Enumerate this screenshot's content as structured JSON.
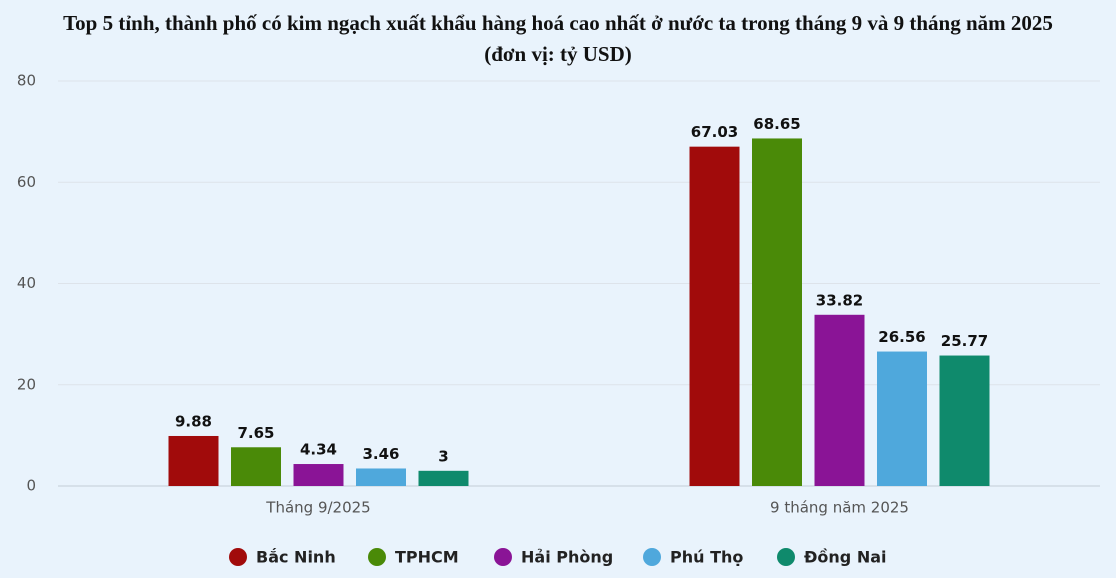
{
  "chart_data": {
    "type": "bar",
    "title": "Top 5 tỉnh, thành phố có kim ngạch xuất khẩu hàng hoá cao nhất ở nước ta trong tháng 9 và 9 tháng năm 2025 (đơn vị: tỷ USD)",
    "categories": [
      "Tháng 9/2025",
      "9 tháng năm 2025"
    ],
    "series": [
      {
        "name": "Bắc Ninh",
        "color": "#a10b0b",
        "values": [
          9.88,
          67.03
        ]
      },
      {
        "name": "TPHCM",
        "color": "#4a8a08",
        "values": [
          7.65,
          68.65
        ]
      },
      {
        "name": "Hải Phòng",
        "color": "#8a1496",
        "values": [
          4.34,
          33.82
        ]
      },
      {
        "name": "Phú Thọ",
        "color": "#4fa8dc",
        "values": [
          3.46,
          26.56
        ]
      },
      {
        "name": "Đồng Nai",
        "color": "#0f8a6c",
        "values": [
          3,
          25.77
        ]
      }
    ],
    "ylim": [
      0,
      80
    ],
    "yticks": [
      0,
      20,
      40,
      60,
      80
    ],
    "grid": true,
    "legend": "bottom"
  }
}
